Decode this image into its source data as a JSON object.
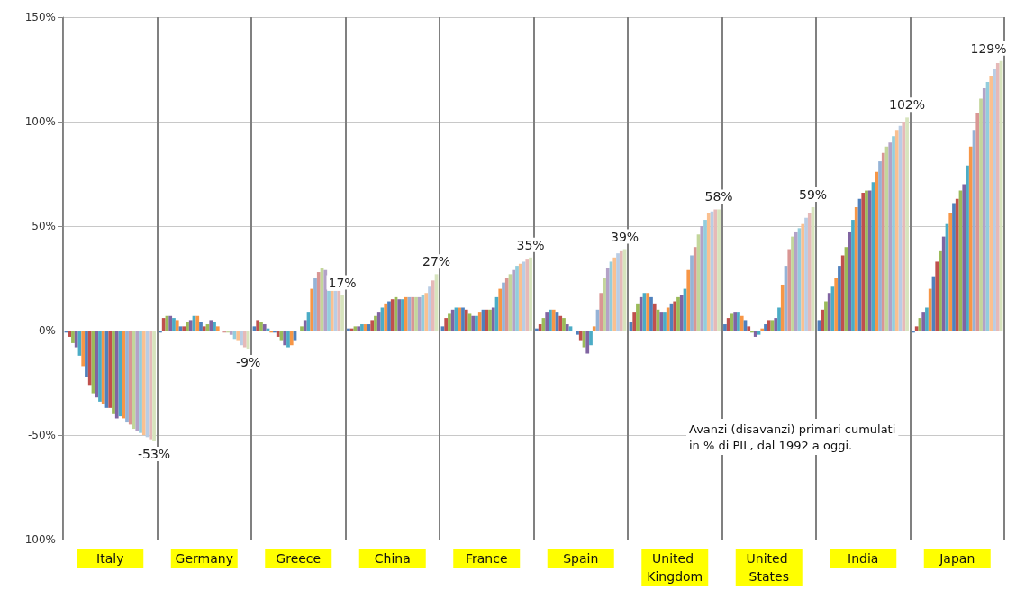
{
  "chart_data": {
    "type": "bar",
    "categories": [
      "Italy",
      "Germany",
      "Greece",
      "China",
      "France",
      "Spain",
      "United Kingdom",
      "United States",
      "India",
      "Japan"
    ],
    "series": [
      {
        "color": "#4f81bd",
        "values": [
          -1,
          -1,
          2,
          1,
          2,
          1,
          4,
          3,
          5,
          -1
        ]
      },
      {
        "color": "#c0504d",
        "values": [
          -3,
          6,
          5,
          1,
          6,
          3,
          9,
          6,
          10,
          2
        ]
      },
      {
        "color": "#9bbb59",
        "values": [
          -6,
          7,
          4,
          2,
          8,
          6,
          13,
          8,
          14,
          6
        ]
      },
      {
        "color": "#8064a2",
        "values": [
          -8,
          7,
          3,
          2,
          10,
          9,
          16,
          9,
          18,
          9
        ]
      },
      {
        "color": "#4bacc6",
        "values": [
          -12,
          6,
          1,
          3,
          11,
          10,
          18,
          9,
          21,
          11
        ]
      },
      {
        "color": "#f79646",
        "values": [
          -17,
          5,
          -1,
          3,
          11,
          10,
          18,
          7,
          25,
          20
        ]
      },
      {
        "color": "#4f81bd",
        "values": [
          -22,
          2,
          -1,
          3,
          11,
          9,
          16,
          5,
          31,
          26
        ]
      },
      {
        "color": "#c0504d",
        "values": [
          -26,
          2,
          -3,
          5,
          10,
          7,
          13,
          2,
          36,
          33
        ]
      },
      {
        "color": "#9bbb59",
        "values": [
          -30,
          4,
          -5,
          7,
          8,
          6,
          10,
          -1,
          40,
          38
        ]
      },
      {
        "color": "#8064a2",
        "values": [
          -32,
          5,
          -7,
          9,
          7,
          3,
          9,
          -3,
          47,
          45
        ]
      },
      {
        "color": "#4bacc6",
        "values": [
          -34,
          7,
          -8,
          11,
          7,
          2,
          9,
          -2,
          53,
          51
        ]
      },
      {
        "color": "#f79646",
        "values": [
          -35,
          7,
          -7,
          13,
          9,
          null,
          11,
          1,
          59,
          56
        ]
      },
      {
        "color": "#4f81bd",
        "values": [
          -37,
          4,
          -5,
          14,
          10,
          -2,
          13,
          3,
          63,
          61
        ]
      },
      {
        "color": "#c0504d",
        "values": [
          -37,
          2,
          null,
          15,
          10,
          -5,
          14,
          5,
          66,
          63
        ]
      },
      {
        "color": "#9bbb59",
        "values": [
          -40,
          3,
          2,
          16,
          10,
          -8,
          16,
          5,
          67,
          67
        ]
      },
      {
        "color": "#8064a2",
        "values": [
          -42,
          5,
          5,
          15,
          11,
          -11,
          17,
          6,
          67,
          70
        ]
      },
      {
        "color": "#4bacc6",
        "values": [
          -41,
          4,
          9,
          15,
          16,
          -7,
          20,
          11,
          71,
          79
        ]
      },
      {
        "color": "#f79646",
        "values": [
          -42,
          2,
          20,
          16,
          20,
          2,
          29,
          22,
          76,
          88
        ]
      },
      {
        "color": "#95b3d7",
        "values": [
          -44,
          null,
          25,
          16,
          23,
          10,
          36,
          31,
          81,
          96
        ]
      },
      {
        "color": "#d99694",
        "values": [
          -45,
          -1,
          28,
          16,
          25,
          18,
          40,
          39,
          85,
          104
        ]
      },
      {
        "color": "#c3d69b",
        "values": [
          -47,
          -1,
          30,
          16,
          27,
          25,
          46,
          45,
          88,
          111
        ]
      },
      {
        "color": "#b3a2c7",
        "values": [
          -48,
          -2,
          29,
          16,
          29,
          30,
          50,
          47,
          90,
          116
        ]
      },
      {
        "color": "#93cddd",
        "values": [
          -49,
          -4,
          19,
          17,
          31,
          33,
          53,
          49,
          93,
          119
        ]
      },
      {
        "color": "#fac090",
        "values": [
          -50,
          -5,
          19,
          18,
          32,
          35,
          56,
          51,
          96,
          122
        ]
      },
      {
        "color": "#b9cde5",
        "values": [
          -51,
          -7,
          19,
          21,
          33,
          37,
          57,
          54,
          98,
          125
        ]
      },
      {
        "color": "#e6b9b8",
        "values": [
          -52,
          -8,
          19,
          24,
          34,
          38,
          58,
          56,
          100,
          128
        ]
      },
      {
        "color": "#d7e4bd",
        "values": [
          -53,
          -9,
          17,
          27,
          35,
          39,
          58,
          59,
          102,
          129
        ],
        "value_labels": [
          "-53%",
          "-9%",
          "17%",
          "27%",
          "35%",
          "39%",
          "58%",
          "59%",
          "102%",
          "129%"
        ]
      }
    ],
    "ylim": [
      -100,
      150
    ],
    "yticks": [
      {
        "value": -100,
        "label": "-100%"
      },
      {
        "value": -50,
        "label": "-50%"
      },
      {
        "value": 0,
        "label": "0%"
      },
      {
        "value": 50,
        "label": "50%"
      },
      {
        "value": 100,
        "label": "100%"
      },
      {
        "value": 150,
        "label": "150%"
      }
    ],
    "grid": true,
    "annotations": [
      "Avanzi (disavanzi) primari cumulati\nin % di PIL, dal 1992 a oggi."
    ]
  }
}
